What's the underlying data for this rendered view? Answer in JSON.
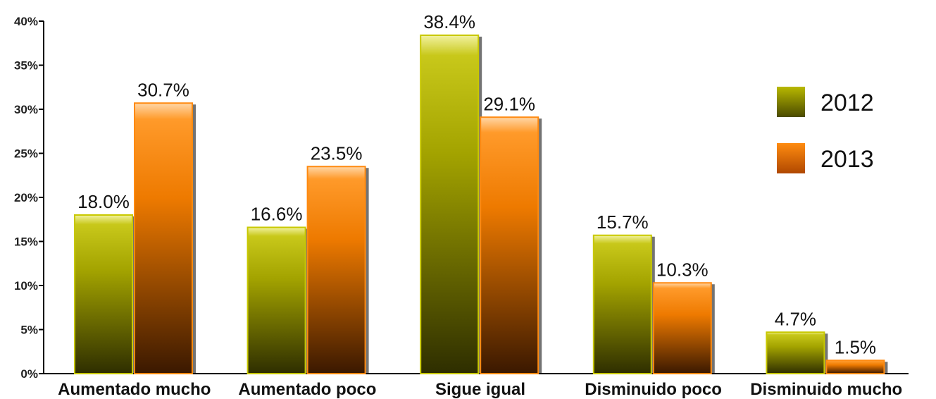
{
  "chart_data": {
    "type": "bar",
    "categories": [
      "Aumentado mucho",
      "Aumentado poco",
      "Sigue igual",
      "Disminuido poco",
      "Disminuido mucho"
    ],
    "series": [
      {
        "name": "2012",
        "values": [
          18.0,
          16.6,
          38.4,
          15.7,
          4.7
        ],
        "labels": [
          "18.0%",
          "16.6%",
          "38.4%",
          "15.7%",
          "4.7%"
        ],
        "color": "#a8a800"
      },
      {
        "name": "2013",
        "values": [
          30.7,
          23.5,
          29.1,
          10.3,
          1.5
        ],
        "labels": [
          "30.7%",
          "23.5%",
          "29.1%",
          "10.3%",
          "1.5%"
        ],
        "color": "#f07800"
      }
    ],
    "yticks": [
      "0%",
      "5%",
      "10%",
      "15%",
      "20%",
      "25%",
      "30%",
      "35%",
      "40%"
    ],
    "ylim": [
      0,
      40
    ],
    "grid": false,
    "legend_position": "right"
  }
}
